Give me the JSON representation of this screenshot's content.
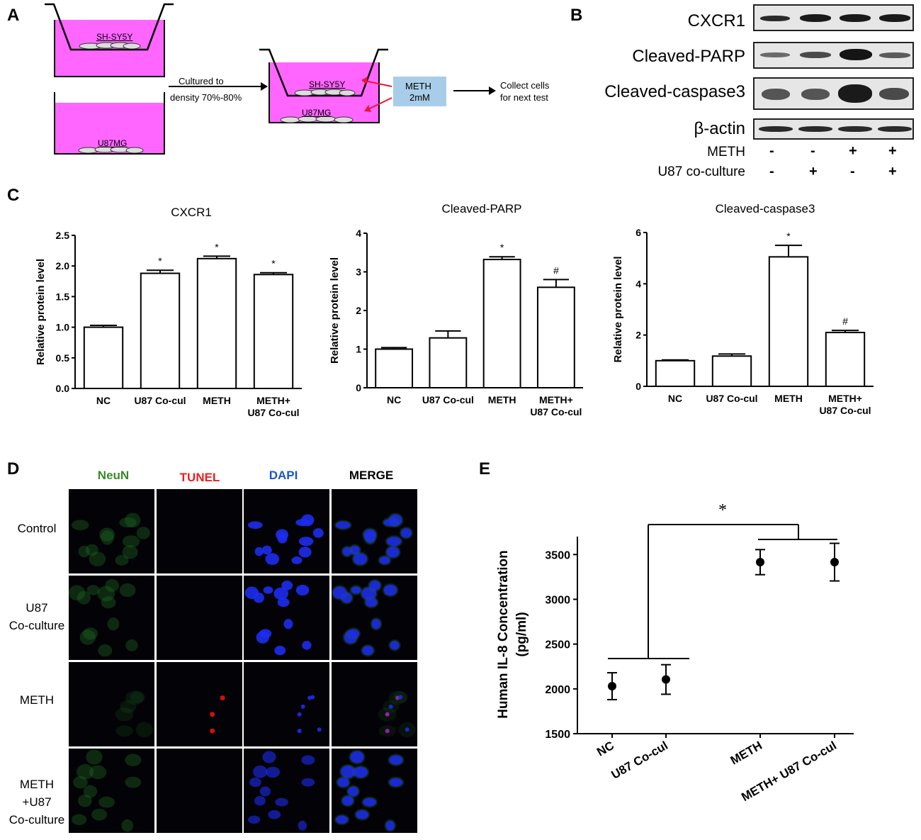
{
  "panels": {
    "A": "A",
    "B": "B",
    "C": "C",
    "D": "D",
    "E": "E"
  },
  "panel_a": {
    "upper_cell": "SH-SY5Y",
    "lower_cell": "U87MG",
    "arrow_text_line1": "Cultured to",
    "arrow_text_line2": "density 70%-80%",
    "coculture_upper": "SH-SY5Y",
    "coculture_lower": "U87MG",
    "treatment_line1": "METH",
    "treatment_line2": "2mM",
    "collect_line1": "Collect cells",
    "collect_line2": "for next test",
    "colors": {
      "medium": "#ff66ff",
      "treatment_box": "#a8cde8",
      "arrow_red": "#e8173b"
    }
  },
  "panel_b": {
    "proteins": [
      "CXCR1",
      "Cleaved-PARP",
      "Cleaved-caspase3",
      "β-actin"
    ],
    "conditions": [
      {
        "label": "METH",
        "values": [
          "-",
          "-",
          "+",
          "+"
        ]
      },
      {
        "label": "U87 co-culture",
        "values": [
          "-",
          "+",
          "-",
          "+"
        ]
      }
    ]
  },
  "chart_data": [
    {
      "type": "bar",
      "title": "CXCR1",
      "ylabel": "Relative protein level",
      "categories": [
        "NC",
        "U87 Co-cul",
        "METH",
        "METH+\nU87 Co-cul"
      ],
      "values": [
        1.0,
        1.88,
        2.12,
        1.86
      ],
      "errors": [
        0.03,
        0.05,
        0.04,
        0.03
      ],
      "annotations": [
        "",
        "*",
        "*",
        "*"
      ],
      "ylim": [
        0,
        2.5
      ],
      "yticks": [
        "0.0",
        "0.5",
        "1.0",
        "1.5",
        "2.0",
        "2.5"
      ]
    },
    {
      "type": "bar",
      "title": "Cleaved-PARP",
      "ylabel": "Relative protein level",
      "categories": [
        "NC",
        "U87 Co-cul",
        "METH",
        "METH+\nU87 Co-cul"
      ],
      "values": [
        1.0,
        1.29,
        3.32,
        2.6
      ],
      "errors": [
        0.04,
        0.18,
        0.07,
        0.2
      ],
      "annotations": [
        "",
        "",
        "*",
        "#"
      ],
      "ylim": [
        0,
        4
      ],
      "yticks": [
        "0",
        "1",
        "2",
        "3",
        "4"
      ]
    },
    {
      "type": "bar",
      "title": "Cleaved-caspase3",
      "ylabel": "Relative protein level",
      "categories": [
        "NC",
        "U87 Co-cul",
        "METH",
        "METH+\nU87 Co-cul"
      ],
      "values": [
        1.0,
        1.18,
        5.05,
        2.1
      ],
      "errors": [
        0.03,
        0.08,
        0.45,
        0.08
      ],
      "annotations": [
        "",
        "",
        "*",
        "#"
      ],
      "ylim": [
        0,
        6
      ],
      "yticks": [
        "0",
        "2",
        "4",
        "6"
      ]
    },
    {
      "type": "scatter",
      "title": "",
      "ylabel": "Human IL-8 Concentration\n(pg/ml)",
      "categories": [
        "NC",
        "U87 Co-cul",
        "METH",
        "METH+ U87 Co-cul"
      ],
      "values": [
        2030,
        2105,
        3415,
        3415
      ],
      "errors": [
        150,
        165,
        140,
        210
      ],
      "ylim": [
        1500,
        3700
      ],
      "yticks": [
        "1500",
        "2000",
        "2500",
        "3000",
        "3500"
      ],
      "significance": "*"
    }
  ],
  "panel_d": {
    "columns": [
      {
        "label": "NeuN",
        "color": "#3a8a2a"
      },
      {
        "label": "TUNEL",
        "color": "#e82020"
      },
      {
        "label": "DAPI",
        "color": "#1a55c8"
      },
      {
        "label": "MERGE",
        "color": "#000000"
      }
    ],
    "rows": [
      {
        "label": "Control"
      },
      {
        "label": "U87\nCo-culture"
      },
      {
        "label": "METH"
      },
      {
        "label": "METH\n+U87\nCo-culture"
      }
    ]
  }
}
